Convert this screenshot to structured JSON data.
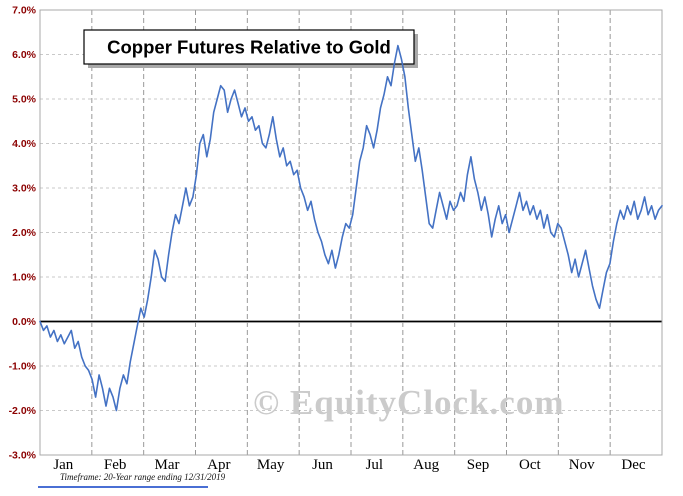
{
  "chart_data": {
    "type": "line",
    "title": "Copper Futures Relative to Gold",
    "xlabel": "",
    "ylabel": "",
    "ylim": [
      -3,
      7
    ],
    "ytick_step": 1,
    "ytick_labels": [
      "7.0%",
      "6.0%",
      "5.0%",
      "4.0%",
      "3.0%",
      "2.0%",
      "1.0%",
      "0.0%",
      "-1.0%",
      "-2.0%",
      "-3.0%"
    ],
    "categories": [
      "Jan",
      "Feb",
      "Mar",
      "Apr",
      "May",
      "Jun",
      "Jul",
      "Aug",
      "Sep",
      "Oct",
      "Nov",
      "Dec"
    ],
    "grid": true,
    "legend": "none",
    "line_color": "#4472C4",
    "ytick_color": "#8B0000",
    "month_label_color": "#000000",
    "grid_color": "#c9c9c9",
    "month_grid_color": "#999999",
    "zero_line_color": "#000000",
    "border_color": "#a8a8a8",
    "title_box_shadow_color": "#a9a9a9",
    "values": [
      0.0,
      -0.2,
      -0.1,
      -0.35,
      -0.2,
      -0.45,
      -0.3,
      -0.5,
      -0.35,
      -0.2,
      -0.6,
      -0.45,
      -0.8,
      -1.0,
      -1.1,
      -1.3,
      -1.7,
      -1.2,
      -1.5,
      -1.9,
      -1.5,
      -1.7,
      -2.0,
      -1.5,
      -1.2,
      -1.4,
      -0.9,
      -0.5,
      -0.1,
      0.3,
      0.1,
      0.5,
      1.0,
      1.6,
      1.4,
      1.0,
      0.9,
      1.5,
      2.0,
      2.4,
      2.2,
      2.6,
      3.0,
      2.6,
      2.8,
      3.3,
      4.0,
      4.2,
      3.7,
      4.1,
      4.7,
      5.0,
      5.3,
      5.2,
      4.7,
      5.0,
      5.2,
      4.9,
      4.6,
      4.8,
      4.5,
      4.6,
      4.3,
      4.4,
      4.0,
      3.9,
      4.2,
      4.6,
      4.1,
      3.7,
      3.9,
      3.5,
      3.6,
      3.3,
      3.4,
      3.0,
      2.8,
      2.5,
      2.7,
      2.3,
      2.0,
      1.8,
      1.5,
      1.3,
      1.6,
      1.2,
      1.5,
      1.9,
      2.2,
      2.1,
      2.4,
      3.0,
      3.6,
      3.9,
      4.4,
      4.2,
      3.9,
      4.3,
      4.8,
      5.1,
      5.5,
      5.3,
      5.8,
      6.2,
      5.9,
      5.5,
      4.8,
      4.2,
      3.6,
      3.9,
      3.4,
      2.8,
      2.2,
      2.1,
      2.5,
      2.9,
      2.6,
      2.3,
      2.7,
      2.5,
      2.6,
      2.9,
      2.7,
      3.3,
      3.7,
      3.2,
      2.9,
      2.5,
      2.8,
      2.4,
      1.9,
      2.3,
      2.6,
      2.2,
      2.4,
      2.0,
      2.3,
      2.6,
      2.9,
      2.5,
      2.7,
      2.4,
      2.6,
      2.3,
      2.5,
      2.1,
      2.4,
      2.0,
      1.9,
      2.2,
      2.1,
      1.8,
      1.5,
      1.1,
      1.4,
      1.0,
      1.3,
      1.6,
      1.2,
      0.8,
      0.5,
      0.3,
      0.7,
      1.1,
      1.3,
      1.8,
      2.2,
      2.5,
      2.3,
      2.6,
      2.4,
      2.7,
      2.3,
      2.5,
      2.8,
      2.4,
      2.6,
      2.3,
      2.5,
      2.6
    ]
  },
  "watermark": "© EquityClock.com",
  "footnote": "Timeframe: 20-Year range ending 12/31/2019"
}
